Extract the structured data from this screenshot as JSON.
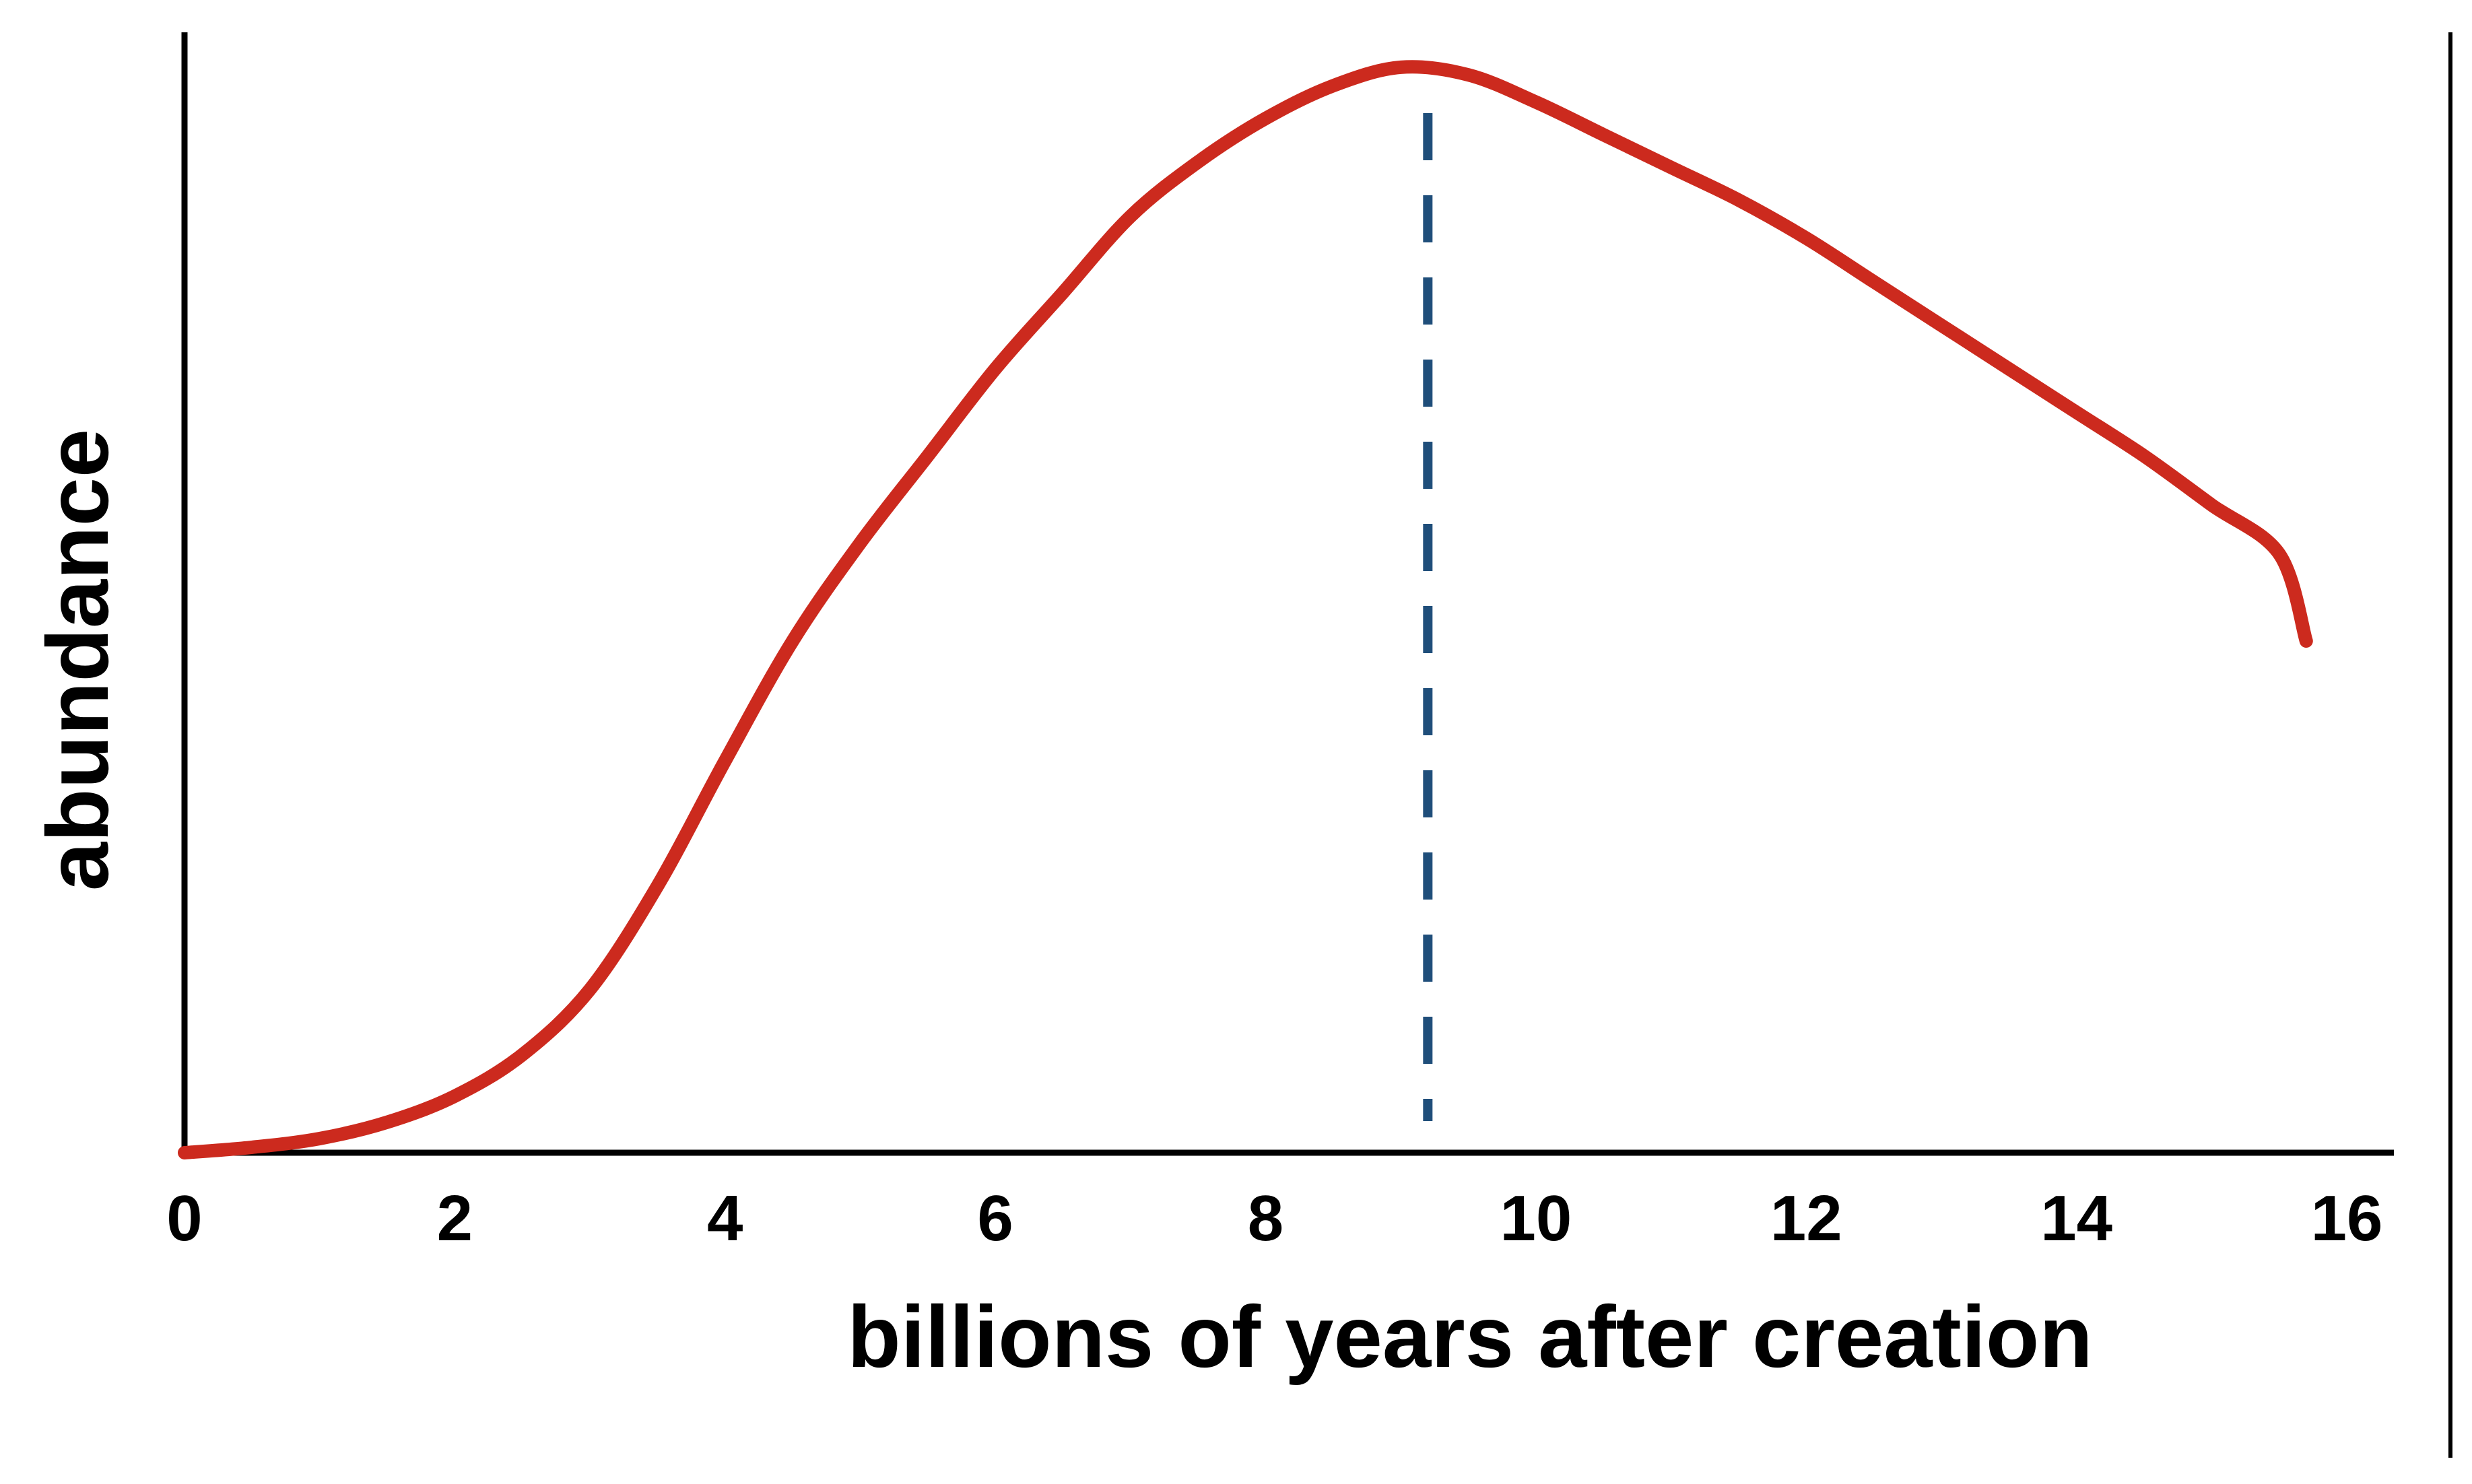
{
  "chart_data": {
    "type": "line",
    "title": "",
    "xlabel": "billions of years after creation",
    "ylabel": "abundance",
    "xlim": [
      0,
      16
    ],
    "ylim": [
      0,
      1
    ],
    "xticks": [
      0,
      2,
      4,
      6,
      8,
      10,
      12,
      14,
      16
    ],
    "yticks": [],
    "grid": false,
    "legend": "none",
    "series": [
      {
        "color": "#cc2a1e",
        "style": "solid",
        "x": [
          0,
          0.5,
          1,
          1.5,
          2,
          2.5,
          3,
          3.5,
          4,
          4.5,
          5,
          5.5,
          6,
          6.5,
          7,
          7.5,
          8,
          8.5,
          9,
          9.5,
          10,
          10.5,
          11,
          11.5,
          12,
          12.5,
          13,
          13.5,
          14,
          14.5,
          15,
          15.5,
          15.7
        ],
        "y": [
          0,
          0.005,
          0.013,
          0.028,
          0.052,
          0.09,
          0.15,
          0.245,
          0.36,
          0.47,
          0.56,
          0.64,
          0.72,
          0.79,
          0.86,
          0.91,
          0.95,
          0.98,
          0.997,
          0.99,
          0.965,
          0.935,
          0.905,
          0.875,
          0.84,
          0.8,
          0.76,
          0.72,
          0.68,
          0.64,
          0.595,
          0.55,
          0.47
        ]
      }
    ],
    "vline": {
      "x": 9.2,
      "color": "#1f4e7a",
      "style": "dashed"
    }
  }
}
